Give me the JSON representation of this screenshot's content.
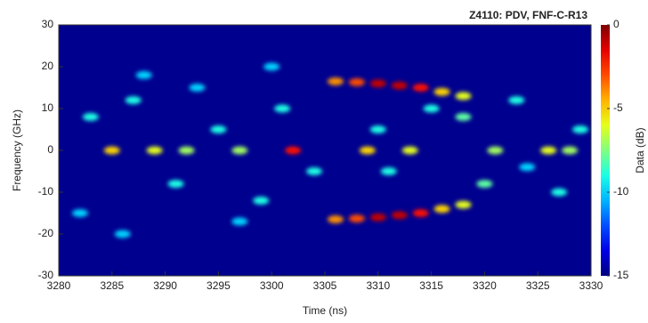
{
  "chart_data": {
    "type": "heatmap",
    "title": "Z4110: PDV, FNF-C-R13",
    "xlabel": "Time (ns)",
    "ylabel": "Frequency (GHz)",
    "zlabel": "Data (dB)",
    "xlim": [
      3280,
      3330
    ],
    "xticks": [
      3280,
      3285,
      3290,
      3295,
      3300,
      3305,
      3310,
      3315,
      3320,
      3325,
      3330
    ],
    "ylim": [
      -30,
      30
    ],
    "yticks": [
      -30,
      -20,
      -10,
      0,
      10,
      20,
      30
    ],
    "zlim": [
      -15,
      0
    ],
    "zticks": [
      -15,
      -10,
      -5,
      0
    ],
    "colormap": "jet",
    "x": [
      3306,
      3308,
      3310,
      3312,
      3314,
      3316,
      3318,
      3306,
      3308,
      3310,
      3312,
      3314,
      3316,
      3318,
      3285,
      3289,
      3292,
      3297,
      3302,
      3309,
      3313,
      3321,
      3326,
      3328,
      3283,
      3287,
      3291,
      3295,
      3299,
      3301,
      3304,
      3318,
      3320,
      3323,
      3327,
      3282,
      3288,
      3293,
      3297,
      3310,
      3311,
      3315,
      3324,
      3329,
      3286,
      3300
    ],
    "y": [
      16.5,
      16.3,
      16,
      15.5,
      15,
      14,
      13,
      -16.5,
      -16.3,
      -16,
      -15.5,
      -15,
      -14,
      -13,
      0,
      0,
      0,
      0,
      0,
      0,
      0,
      0,
      0,
      0,
      8,
      12,
      -8,
      5,
      -12,
      10,
      -5,
      8,
      -8,
      12,
      -10,
      -15,
      18,
      15,
      -17,
      5,
      -5,
      10,
      -4,
      5,
      -20,
      20
    ],
    "z": [
      -4,
      -3,
      -1,
      -1,
      -2,
      -5,
      -6,
      -4,
      -3,
      -1,
      -1,
      -2,
      -5,
      -6,
      -5,
      -6,
      -7,
      -7,
      -2,
      -5,
      -6,
      -7,
      -6,
      -7,
      -9,
      -9,
      -9,
      -9,
      -9,
      -9,
      -9,
      -8,
      -8,
      -9,
      -9,
      -10,
      -10,
      -10,
      -10,
      -9,
      -9,
      -9,
      -10,
      -9,
      -10,
      -10
    ]
  }
}
